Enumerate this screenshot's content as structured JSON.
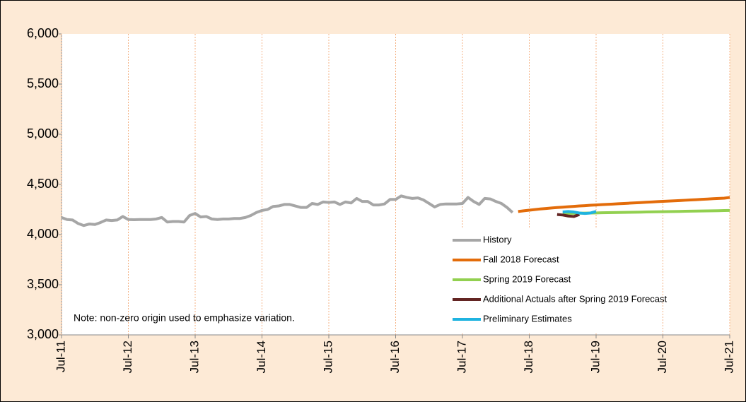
{
  "chart_data": {
    "type": "line",
    "annotation": "Note: non-zero origin used to emphasize variation.",
    "ylim": [
      3000,
      6000
    ],
    "yticks": [
      {
        "value": 3000,
        "label": "3,000"
      },
      {
        "value": 3500,
        "label": "3,500"
      },
      {
        "value": 4000,
        "label": "4,000"
      },
      {
        "value": 4500,
        "label": "4,500"
      },
      {
        "value": 5000,
        "label": "5,000"
      },
      {
        "value": 5500,
        "label": "5,500"
      },
      {
        "value": 6000,
        "label": "6,000"
      }
    ],
    "xlim": [
      "2011-07",
      "2021-07"
    ],
    "xticks": [
      {
        "value": "2011-07",
        "label": "Jul-11"
      },
      {
        "value": "2012-07",
        "label": "Jul-12"
      },
      {
        "value": "2013-07",
        "label": "Jul-13"
      },
      {
        "value": "2014-07",
        "label": "Jul-14"
      },
      {
        "value": "2015-07",
        "label": "Jul-15"
      },
      {
        "value": "2016-07",
        "label": "Jul-16"
      },
      {
        "value": "2017-07",
        "label": "Jul-17"
      },
      {
        "value": "2018-07",
        "label": "Jul-18"
      },
      {
        "value": "2019-07",
        "label": "Jul-19"
      },
      {
        "value": "2020-07",
        "label": "Jul-20"
      },
      {
        "value": "2021-07",
        "label": "Jul-21"
      }
    ],
    "grid": true,
    "series": [
      {
        "name": "History",
        "color": "#a6a6a6",
        "x": [
          "2011-07",
          "2011-08",
          "2011-09",
          "2011-10",
          "2011-11",
          "2011-12",
          "2012-01",
          "2012-02",
          "2012-03",
          "2012-04",
          "2012-05",
          "2012-06",
          "2012-07",
          "2012-08",
          "2012-09",
          "2012-10",
          "2012-11",
          "2012-12",
          "2013-01",
          "2013-02",
          "2013-03",
          "2013-04",
          "2013-05",
          "2013-06",
          "2013-07",
          "2013-08",
          "2013-09",
          "2013-10",
          "2013-11",
          "2013-12",
          "2014-01",
          "2014-02",
          "2014-03",
          "2014-04",
          "2014-05",
          "2014-06",
          "2014-07",
          "2014-08",
          "2014-09",
          "2014-10",
          "2014-11",
          "2014-12",
          "2015-01",
          "2015-02",
          "2015-03",
          "2015-04",
          "2015-05",
          "2015-06",
          "2015-07",
          "2015-08",
          "2015-09",
          "2015-10",
          "2015-11",
          "2015-12",
          "2016-01",
          "2016-02",
          "2016-03",
          "2016-04",
          "2016-05",
          "2016-06",
          "2016-07",
          "2016-08",
          "2016-09",
          "2016-10",
          "2016-11",
          "2016-12",
          "2017-01",
          "2017-02",
          "2017-03",
          "2017-04",
          "2017-05",
          "2017-06",
          "2017-07",
          "2017-08",
          "2017-09",
          "2017-10",
          "2017-11",
          "2017-12",
          "2018-01",
          "2018-02",
          "2018-03",
          "2018-04"
        ],
        "values": [
          4170,
          4150,
          4145,
          4110,
          4090,
          4105,
          4100,
          4120,
          4145,
          4140,
          4145,
          4180,
          4150,
          4148,
          4150,
          4150,
          4150,
          4155,
          4170,
          4125,
          4130,
          4130,
          4125,
          4190,
          4210,
          4175,
          4180,
          4155,
          4150,
          4155,
          4155,
          4160,
          4160,
          4170,
          4190,
          4220,
          4240,
          4250,
          4280,
          4285,
          4300,
          4300,
          4285,
          4270,
          4270,
          4310,
          4300,
          4325,
          4320,
          4325,
          4300,
          4325,
          4315,
          4360,
          4330,
          4330,
          4295,
          4295,
          4305,
          4350,
          4350,
          4385,
          4370,
          4360,
          4365,
          4345,
          4310,
          4275,
          4300,
          4305,
          4305,
          4305,
          4310,
          4370,
          4330,
          4300,
          4360,
          4355,
          4330,
          4310,
          4270,
          4220
        ]
      },
      {
        "name": "Fall 2018 Forecast",
        "color": "#e36c0a",
        "x": [
          "2018-05",
          "2018-06",
          "2018-07",
          "2018-08",
          "2018-09",
          "2018-10",
          "2018-11",
          "2018-12",
          "2019-01",
          "2019-02",
          "2019-03",
          "2019-04",
          "2019-05",
          "2019-06",
          "2019-07",
          "2019-08",
          "2019-09",
          "2019-10",
          "2019-11",
          "2019-12",
          "2020-01",
          "2020-02",
          "2020-03",
          "2020-04",
          "2020-05",
          "2020-06",
          "2020-07",
          "2020-08",
          "2020-09",
          "2020-10",
          "2020-11",
          "2020-12",
          "2021-01",
          "2021-02",
          "2021-03",
          "2021-04",
          "2021-05",
          "2021-06",
          "2021-07"
        ],
        "values": [
          4230,
          4237,
          4243,
          4249,
          4255,
          4260,
          4265,
          4269,
          4273,
          4277,
          4281,
          4285,
          4288,
          4292,
          4295,
          4298,
          4301,
          4304,
          4307,
          4310,
          4313,
          4316,
          4319,
          4322,
          4325,
          4328,
          4331,
          4334,
          4336,
          4339,
          4342,
          4345,
          4348,
          4351,
          4354,
          4357,
          4360,
          4363,
          4370
        ]
      },
      {
        "name": "Spring 2019 Forecast",
        "color": "#92d050",
        "x": [
          "2019-01",
          "2019-02",
          "2019-03",
          "2019-04",
          "2019-05",
          "2019-06",
          "2019-07",
          "2019-08",
          "2019-09",
          "2019-10",
          "2019-11",
          "2019-12",
          "2020-01",
          "2020-02",
          "2020-03",
          "2020-04",
          "2020-05",
          "2020-06",
          "2020-07",
          "2020-08",
          "2020-09",
          "2020-10",
          "2020-11",
          "2020-12",
          "2021-01",
          "2021-02",
          "2021-03",
          "2021-04",
          "2021-05",
          "2021-06",
          "2021-07"
        ],
        "values": [
          4210,
          4211,
          4212,
          4213,
          4214,
          4215,
          4216,
          4217,
          4218,
          4219,
          4220,
          4221,
          4222,
          4223,
          4224,
          4225,
          4226,
          4227,
          4228,
          4229,
          4230,
          4231,
          4232,
          4233,
          4234,
          4235,
          4236,
          4237,
          4238,
          4239,
          4240
        ]
      },
      {
        "name": "Additional Actuals after Spring 2019 Forecast",
        "color": "#632523",
        "x": [
          "2018-12",
          "2019-01",
          "2019-02",
          "2019-03",
          "2019-04"
        ],
        "values": [
          4200,
          4195,
          4185,
          4180,
          4200
        ]
      },
      {
        "name": "Preliminary Estimates",
        "color": "#1fb3e0",
        "x": [
          "2019-01",
          "2019-02",
          "2019-03",
          "2019-04",
          "2019-05",
          "2019-06",
          "2019-07"
        ],
        "values": [
          4225,
          4230,
          4225,
          4215,
          4210,
          4215,
          4230
        ]
      }
    ]
  }
}
